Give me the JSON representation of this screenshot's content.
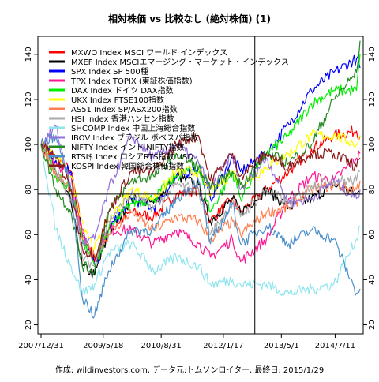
{
  "chart_data": {
    "type": "line",
    "title": "相対株価 vs 比較なし (絶対株価) (1)",
    "footer": "作成: wildinvestors.com, データ元:トムソンロイター, 最終日: 2015/1/29",
    "x_ticks": [
      "2007/12/31",
      "2009/5/18",
      "2010/8/31",
      "2012/1/17",
      "2013/5/1",
      "2014/7/11"
    ],
    "y_ticks": [
      20,
      40,
      60,
      80,
      100,
      120,
      140
    ],
    "ylim": [
      16,
      148
    ],
    "xlim": [
      "2007/12/31",
      "2015/1/29"
    ],
    "grid": false,
    "legend_position": "top-left",
    "crosshair": {
      "x": "2012/9/28",
      "y": 78
    },
    "series": [
      {
        "name": "MXWO Index MSCI ワールド インデックス",
        "color": "#ff0000",
        "width": 3,
        "x": [
          "2007/12/31",
          "2008/4/30",
          "2008/8/31",
          "2008/11/30",
          "2009/3/9",
          "2009/6/30",
          "2009/12/31",
          "2010/6/30",
          "2010/12/31",
          "2011/6/30",
          "2011/10/4",
          "2012/3/31",
          "2012/6/4",
          "2012/12/31",
          "2013/6/30",
          "2013/12/31",
          "2014/6/30",
          "2014/12/31",
          "2015/1/29"
        ],
        "values": [
          100,
          94,
          88,
          62,
          48,
          62,
          70,
          68,
          78,
          80,
          66,
          76,
          70,
          80,
          88,
          98,
          104,
          106,
          104
        ]
      },
      {
        "name": "MXEF Index MSCIエマージング・マーケット・インデックス",
        "color": "#000000",
        "width": 3,
        "x": [
          "2007/12/31",
          "2008/4/30",
          "2008/8/31",
          "2008/11/30",
          "2009/3/9",
          "2009/6/30",
          "2009/12/31",
          "2010/6/30",
          "2010/12/31",
          "2011/6/30",
          "2011/10/4",
          "2012/3/31",
          "2012/6/4",
          "2012/12/31",
          "2013/6/30",
          "2013/12/31",
          "2014/6/30",
          "2014/12/31",
          "2015/1/29"
        ],
        "values": [
          100,
          88,
          74,
          46,
          42,
          60,
          76,
          74,
          86,
          82,
          66,
          76,
          70,
          80,
          72,
          76,
          82,
          78,
          79
        ]
      },
      {
        "name": "SPX Index SP 500種",
        "color": "#0000ff",
        "width": 3,
        "x": [
          "2007/12/31",
          "2008/4/30",
          "2008/8/31",
          "2008/11/30",
          "2009/3/9",
          "2009/6/30",
          "2009/12/31",
          "2010/6/30",
          "2010/12/31",
          "2011/6/30",
          "2011/10/4",
          "2012/3/31",
          "2012/6/4",
          "2012/12/31",
          "2013/6/30",
          "2013/12/31",
          "2014/6/30",
          "2014/12/31",
          "2015/1/29"
        ],
        "values": [
          100,
          93,
          88,
          60,
          46,
          62,
          76,
          72,
          85,
          90,
          76,
          94,
          88,
          96,
          109,
          124,
          132,
          138,
          134
        ]
      },
      {
        "name": "TPX Index TOPIX (東証株価指数)",
        "color": "#ff1493",
        "width": 2,
        "x": [
          "2007/12/31",
          "2008/4/30",
          "2008/8/31",
          "2008/11/30",
          "2009/3/9",
          "2009/6/30",
          "2009/12/31",
          "2010/6/30",
          "2010/12/31",
          "2011/6/30",
          "2011/10/4",
          "2012/3/31",
          "2012/6/4",
          "2012/12/31",
          "2013/6/30",
          "2013/12/31",
          "2014/6/30",
          "2014/12/31",
          "2015/1/29"
        ],
        "values": [
          100,
          92,
          86,
          60,
          50,
          62,
          62,
          56,
          62,
          56,
          50,
          58,
          48,
          58,
          76,
          86,
          84,
          94,
          96
        ]
      },
      {
        "name": "DAX Index ドイツ DAX指数",
        "color": "#00ee00",
        "width": 2,
        "x": [
          "2007/12/31",
          "2008/4/30",
          "2008/8/31",
          "2008/11/30",
          "2009/3/9",
          "2009/6/30",
          "2009/12/31",
          "2010/6/30",
          "2010/12/31",
          "2011/6/30",
          "2011/10/4",
          "2012/3/31",
          "2012/6/4",
          "2012/12/31",
          "2013/6/30",
          "2013/12/31",
          "2014/6/30",
          "2014/12/31",
          "2015/1/29"
        ],
        "values": [
          100,
          86,
          80,
          58,
          46,
          62,
          74,
          76,
          86,
          90,
          70,
          88,
          76,
          96,
          104,
          118,
          124,
          124,
          140
        ]
      },
      {
        "name": "UKX Index FTSE100指数",
        "color": "#ffff00",
        "width": 2,
        "x": [
          "2007/12/31",
          "2008/4/30",
          "2008/8/31",
          "2008/11/30",
          "2009/3/9",
          "2009/6/30",
          "2009/12/31",
          "2010/6/30",
          "2010/12/31",
          "2011/6/30",
          "2011/10/4",
          "2012/3/31",
          "2012/6/4",
          "2012/12/31",
          "2013/6/30",
          "2013/12/31",
          "2014/6/30",
          "2014/12/31",
          "2015/1/29"
        ],
        "values": [
          100,
          94,
          86,
          66,
          54,
          66,
          80,
          76,
          88,
          88,
          78,
          88,
          82,
          90,
          96,
          104,
          104,
          100,
          104
        ]
      },
      {
        "name": "AS51 Index SP/ASX200指数",
        "color": "#ff7f50",
        "width": 2,
        "x": [
          "2007/12/31",
          "2008/4/30",
          "2008/8/31",
          "2008/11/30",
          "2009/3/9",
          "2009/6/30",
          "2009/12/31",
          "2010/6/30",
          "2010/12/31",
          "2011/6/30",
          "2011/10/4",
          "2012/3/31",
          "2012/6/4",
          "2012/12/31",
          "2013/6/30",
          "2013/12/31",
          "2014/6/30",
          "2014/12/31",
          "2015/1/29"
        ],
        "values": [
          100,
          86,
          80,
          58,
          50,
          60,
          70,
          62,
          68,
          66,
          58,
          66,
          60,
          70,
          72,
          80,
          82,
          80,
          84
        ]
      },
      {
        "name": "HSI Index 香港ハンセン指数",
        "color": "#aaaaaa",
        "width": 2,
        "x": [
          "2007/12/31",
          "2008/4/30",
          "2008/8/31",
          "2008/11/30",
          "2009/3/9",
          "2009/6/30",
          "2009/12/31",
          "2010/6/30",
          "2010/12/31",
          "2011/6/30",
          "2011/10/4",
          "2012/3/31",
          "2012/6/4",
          "2012/12/31",
          "2013/6/30",
          "2013/12/31",
          "2014/6/30",
          "2014/12/31",
          "2015/1/29"
        ],
        "values": [
          100,
          88,
          76,
          50,
          46,
          66,
          78,
          72,
          82,
          80,
          60,
          74,
          68,
          80,
          74,
          82,
          84,
          84,
          88
        ]
      },
      {
        "name": "SHCOMP Index 中国上海総合指数",
        "color": "#8ee5ee",
        "width": 2,
        "x": [
          "2007/12/31",
          "2008/4/30",
          "2008/8/31",
          "2008/11/30",
          "2009/3/9",
          "2009/6/30",
          "2009/12/31",
          "2010/6/30",
          "2010/12/31",
          "2011/6/30",
          "2011/10/4",
          "2012/3/31",
          "2012/6/4",
          "2012/12/31",
          "2013/6/30",
          "2013/12/31",
          "2014/6/30",
          "2014/12/31",
          "2015/1/29"
        ],
        "values": [
          100,
          62,
          46,
          34,
          38,
          52,
          56,
          44,
          50,
          46,
          38,
          40,
          38,
          38,
          34,
          36,
          38,
          58,
          64
        ]
      },
      {
        "name": "IBOV Index ブラジル ボベスパ指数",
        "color": "#9370db",
        "width": 2,
        "x": [
          "2007/12/31",
          "2008/4/30",
          "2008/8/31",
          "2008/11/30",
          "2009/3/9",
          "2009/6/30",
          "2009/12/31",
          "2010/6/30",
          "2010/12/31",
          "2011/6/30",
          "2011/10/4",
          "2012/3/31",
          "2012/6/4",
          "2012/12/31",
          "2013/6/30",
          "2013/12/31",
          "2014/6/30",
          "2014/12/31",
          "2015/1/29"
        ],
        "values": [
          100,
          108,
          80,
          56,
          58,
          80,
          104,
          94,
          100,
          92,
          80,
          96,
          80,
          94,
          74,
          76,
          84,
          76,
          80
        ]
      },
      {
        "name": "NIFTY Index インド NIFTY指数",
        "color": "#228b22",
        "width": 2,
        "x": [
          "2007/12/31",
          "2008/4/30",
          "2008/8/31",
          "2008/11/30",
          "2009/3/9",
          "2009/6/30",
          "2009/12/31",
          "2010/6/30",
          "2010/12/31",
          "2011/6/30",
          "2011/10/4",
          "2012/3/31",
          "2012/6/4",
          "2012/12/31",
          "2013/6/30",
          "2013/12/31",
          "2014/6/30",
          "2014/12/31",
          "2015/1/29"
        ],
        "values": [
          100,
          80,
          70,
          46,
          44,
          70,
          84,
          86,
          96,
          90,
          80,
          88,
          82,
          96,
          92,
          100,
          120,
          132,
          146
        ]
      },
      {
        "name": "RTSI$ Index ロシアRTS指数 USD",
        "color": "#4a8fcc",
        "width": 2,
        "x": [
          "2007/12/31",
          "2008/4/30",
          "2008/8/31",
          "2008/11/30",
          "2009/3/9",
          "2009/6/30",
          "2009/12/31",
          "2010/6/30",
          "2010/12/31",
          "2011/6/30",
          "2011/10/4",
          "2012/3/31",
          "2012/6/4",
          "2012/12/31",
          "2013/6/30",
          "2013/12/31",
          "2014/6/30",
          "2014/12/31",
          "2015/1/29"
        ],
        "values": [
          100,
          104,
          80,
          32,
          24,
          44,
          62,
          62,
          76,
          84,
          56,
          74,
          56,
          64,
          56,
          62,
          58,
          34,
          36
        ]
      },
      {
        "name": "KOSPI Index 韓国総合株価指数",
        "color": "#8b1a1a",
        "width": 2,
        "x": [
          "2007/12/31",
          "2008/4/30",
          "2008/8/31",
          "2008/11/30",
          "2009/3/9",
          "2009/6/30",
          "2009/12/31",
          "2010/6/30",
          "2010/12/31",
          "2011/6/30",
          "2011/10/4",
          "2012/3/31",
          "2012/6/4",
          "2012/12/31",
          "2013/6/30",
          "2013/12/31",
          "2014/6/30",
          "2014/12/31",
          "2015/1/29"
        ],
        "values": [
          100,
          94,
          80,
          54,
          50,
          70,
          88,
          88,
          100,
          104,
          84,
          96,
          86,
          96,
          90,
          96,
          96,
          90,
          94
        ]
      }
    ]
  }
}
